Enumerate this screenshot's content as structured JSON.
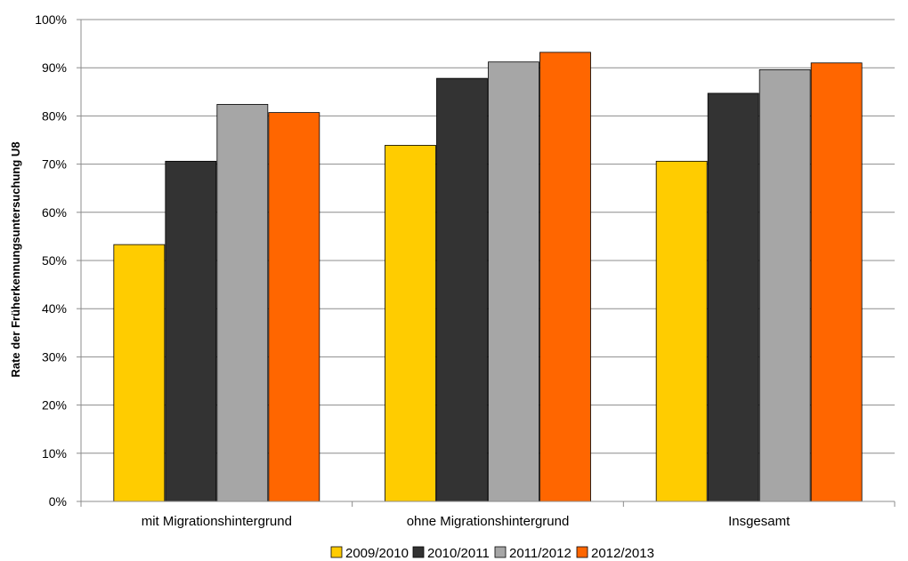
{
  "chart_data": {
    "type": "bar",
    "categories": [
      "mit Migrationshintergrund",
      "ohne Migrationshintergrund",
      "Insgesamt"
    ],
    "series": [
      {
        "name": "2009/2010",
        "color": "#FFCC00",
        "values": [
          53.3,
          73.9,
          70.6
        ]
      },
      {
        "name": "2010/2011",
        "color": "#333333",
        "values": [
          70.6,
          87.8,
          84.7
        ]
      },
      {
        "name": "2011/2012",
        "color": "#A6A6A6",
        "values": [
          82.4,
          91.2,
          89.6
        ]
      },
      {
        "name": "2012/2013",
        "color": "#FF6600",
        "values": [
          80.7,
          93.2,
          91.0
        ]
      }
    ],
    "ylabel": "Rate der Früherkennungsuntersuchung U8",
    "xlabel": "",
    "ylim": [
      0,
      100
    ],
    "yticks": [
      "0%",
      "10%",
      "20%",
      "30%",
      "40%",
      "50%",
      "60%",
      "70%",
      "80%",
      "90%",
      "100%"
    ],
    "grid": true,
    "legend_position": "bottom"
  }
}
